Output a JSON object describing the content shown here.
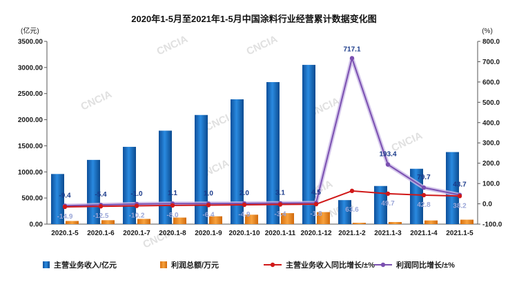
{
  "chart_data": {
    "type": "bar",
    "title": "2020年1-5月至2021年1-5月中国涂料行业经营累计数据变化图",
    "left_unit": "(亿元)",
    "right_unit": "(%)",
    "categories": [
      "2020.1-5",
      "2020.1-6",
      "2020.1-7",
      "2020.1-8",
      "2020.1-9",
      "2020.1-10",
      "2020.1-11",
      "2020.1-12",
      "2021.1-2",
      "2021.1-3",
      "2021.1-4",
      "2021.1-5"
    ],
    "ylim_left": [
      0,
      3500
    ],
    "yticks_left": [
      "0.00",
      "500.00",
      "1000.00",
      "1500.00",
      "2000.00",
      "2500.00",
      "3000.00",
      "3500.00"
    ],
    "ylim_right": [
      -100,
      800
    ],
    "yticks_right": [
      "-100.0",
      "0.0",
      "100.0",
      "200.0",
      "300.0",
      "400.0",
      "500.0",
      "600.0",
      "700.0",
      "800.0"
    ],
    "series": [
      {
        "name": "主营业务收入/亿元",
        "type": "bar",
        "axis": "left",
        "color": "#1f77c8",
        "values": [
          960,
          1230,
          1480,
          1790,
          2090,
          2390,
          2720,
          3050,
          460,
          730,
          1060,
          1380
        ]
      },
      {
        "name": "利润总额/万元",
        "type": "bar",
        "axis": "left",
        "color": "#f28a1e",
        "values": [
          60,
          75,
          100,
          125,
          150,
          180,
          210,
          230,
          25,
          40,
          70,
          85
        ]
      },
      {
        "name": "主营业务收入同比增长/±%",
        "type": "line",
        "axis": "right",
        "color": "#d01818",
        "values": [
          -14.9,
          -12.5,
          -10.2,
          -8.0,
          -6.4,
          -4.9,
          -3.4,
          -1.8,
          63.6,
          49.7,
          42.8,
          38.2
        ],
        "labels": [
          "-14.9",
          "-12.5",
          "-10.2",
          "-8.0",
          "-6.4",
          "-4.9",
          "-3.4",
          "-1.8",
          "63.6",
          "49.7",
          "42.8",
          "38.2"
        ]
      },
      {
        "name": "利润同比增长/±%",
        "type": "line",
        "axis": "right",
        "color": "#7a4fb0",
        "values": [
          -9.4,
          -5.4,
          -1.0,
          1.1,
          1.0,
          2.0,
          3.1,
          4.5,
          717.1,
          193.4,
          79.7,
          43.7
        ],
        "labels": [
          "-9.4",
          "-5.4",
          "-1.0",
          "1.1",
          "1.0",
          "2.0",
          "3.1",
          "4.5",
          "717.1",
          "193.4",
          "79.7",
          "43.7"
        ]
      }
    ],
    "watermark": "CNCIA",
    "legend_position": "bottom",
    "grid": false
  }
}
